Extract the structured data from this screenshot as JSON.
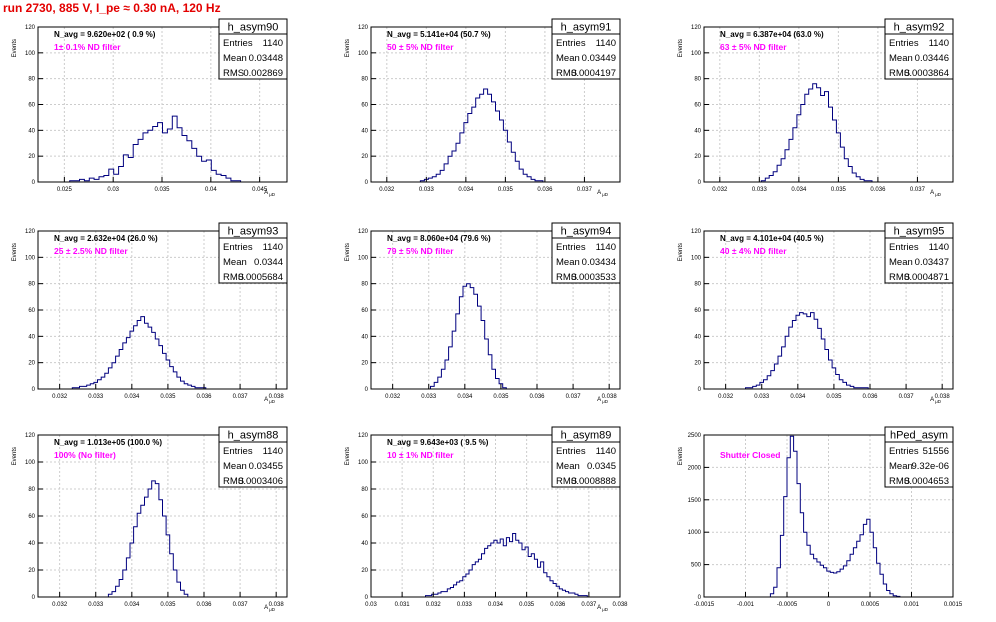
{
  "page": {
    "title": "run 2730,   885 V, I_pe ≈ 0.30 nA, 120 Hz"
  },
  "colors": {
    "title": "#e30000",
    "histogram": "#00007f",
    "annotation": "#ff00ff",
    "grid": "#cccccc",
    "frame": "#000000"
  },
  "chart_data": [
    {
      "type": "histogram",
      "name": "h_asym90",
      "stats": [
        [
          "Entries",
          "1140"
        ],
        [
          "Mean",
          "0.03448"
        ],
        [
          "RMS",
          "0.002869"
        ]
      ],
      "navg": "N_avg = 9.620e+02 ( 0.9 %)",
      "filter": "1± 0.1% ND filter",
      "ylabel": "Events",
      "xlabel": "A_μD",
      "xlim": [
        0.0223,
        0.0478
      ],
      "ylim": [
        0,
        120
      ],
      "xticks": [
        0.025,
        0.03,
        0.035,
        0.04,
        0.045
      ],
      "yticks": [
        0,
        20,
        40,
        60,
        80,
        100,
        120
      ],
      "x": [
        0.0253,
        0.0258,
        0.0263,
        0.0268,
        0.0273,
        0.0278,
        0.0283,
        0.0288,
        0.0293,
        0.0298,
        0.0303,
        0.0308,
        0.0313,
        0.0318,
        0.0323,
        0.0328,
        0.0333,
        0.0338,
        0.0343,
        0.0348,
        0.0353,
        0.0358,
        0.0363,
        0.0368,
        0.0373,
        0.0378,
        0.0383,
        0.0388,
        0.0393,
        0.0398,
        0.0403,
        0.0408,
        0.0413,
        0.0418,
        0.0423,
        0.0428,
        0.0433
      ],
      "values": [
        0,
        1,
        1,
        2,
        1,
        3,
        2,
        4,
        5,
        10,
        6,
        12,
        21,
        19,
        29,
        33,
        38,
        40,
        43,
        46,
        38,
        41,
        51,
        42,
        36,
        32,
        26,
        20,
        16,
        17,
        9,
        6,
        5,
        3,
        1,
        1,
        0
      ]
    },
    {
      "type": "histogram",
      "name": "h_asym91",
      "stats": [
        [
          "Entries",
          "1140"
        ],
        [
          "Mean",
          "0.03449"
        ],
        [
          "RMS",
          "0.0004197"
        ]
      ],
      "navg": "N_avg = 5.141e+04 (50.7 %)",
      "filter": "50 ± 5% ND filter",
      "ylabel": "Events",
      "xlabel": "A_μD",
      "xlim": [
        0.0316,
        0.0379
      ],
      "ylim": [
        0,
        120
      ],
      "xticks": [
        0.032,
        0.033,
        0.034,
        0.035,
        0.036,
        0.037
      ],
      "yticks": [
        0,
        20,
        40,
        60,
        80,
        100,
        120
      ],
      "x": [
        0.0328,
        0.0329,
        0.033,
        0.0331,
        0.0332,
        0.0333,
        0.0334,
        0.0335,
        0.0336,
        0.0337,
        0.0338,
        0.0339,
        0.034,
        0.0341,
        0.0342,
        0.0343,
        0.0344,
        0.0345,
        0.0346,
        0.0347,
        0.0348,
        0.0349,
        0.035,
        0.0351,
        0.0352,
        0.0353,
        0.0354,
        0.0355,
        0.0356,
        0.0357,
        0.0358,
        0.0359,
        0.036
      ],
      "values": [
        0,
        1,
        2,
        3,
        4,
        6,
        9,
        14,
        20,
        24,
        30,
        38,
        46,
        53,
        58,
        65,
        68,
        72,
        68,
        62,
        55,
        48,
        40,
        31,
        23,
        16,
        10,
        6,
        4,
        2,
        1,
        1,
        0
      ]
    },
    {
      "type": "histogram",
      "name": "h_asym92",
      "stats": [
        [
          "Entries",
          "1140"
        ],
        [
          "Mean",
          "0.03446"
        ],
        [
          "RMS",
          "0.0003864"
        ]
      ],
      "navg": "N_avg = 6.387e+04 (63.0 %)",
      "filter": "63 ± 5% ND filter",
      "ylabel": "Events",
      "xlabel": "A_μD",
      "xlim": [
        0.0316,
        0.0379
      ],
      "ylim": [
        0,
        120
      ],
      "xticks": [
        0.032,
        0.033,
        0.034,
        0.035,
        0.036,
        0.037
      ],
      "yticks": [
        0,
        20,
        40,
        60,
        80,
        100,
        120
      ],
      "x": [
        0.033,
        0.0331,
        0.0332,
        0.0333,
        0.0334,
        0.0335,
        0.0336,
        0.0337,
        0.0338,
        0.0339,
        0.034,
        0.0341,
        0.0342,
        0.0343,
        0.0344,
        0.0345,
        0.0346,
        0.0347,
        0.0348,
        0.0349,
        0.035,
        0.0351,
        0.0352,
        0.0353,
        0.0354,
        0.0355,
        0.0356,
        0.0357,
        0.0358,
        0.0359
      ],
      "values": [
        0,
        1,
        3,
        5,
        8,
        13,
        18,
        25,
        33,
        42,
        52,
        60,
        68,
        72,
        76,
        73,
        67,
        70,
        58,
        48,
        38,
        27,
        18,
        12,
        7,
        4,
        2,
        1,
        1,
        0
      ]
    },
    {
      "type": "histogram",
      "name": "h_asym93",
      "stats": [
        [
          "Entries",
          "1140"
        ],
        [
          "Mean",
          "0.0344"
        ],
        [
          "RMS",
          "0.0005684"
        ]
      ],
      "navg": "N_avg = 2.632e+04 (26.0 %)",
      "filter": "25 ± 2.5% ND filter",
      "ylabel": "Events",
      "xlabel": "A_μD",
      "xlim": [
        0.0314,
        0.0383
      ],
      "ylim": [
        0,
        120
      ],
      "xticks": [
        0.032,
        0.033,
        0.034,
        0.035,
        0.036,
        0.037,
        0.038
      ],
      "yticks": [
        0,
        20,
        40,
        60,
        80,
        100,
        120
      ],
      "x": [
        0.0323,
        0.0324,
        0.0325,
        0.0326,
        0.0327,
        0.0328,
        0.0329,
        0.033,
        0.0331,
        0.0332,
        0.0333,
        0.0334,
        0.0335,
        0.0336,
        0.0337,
        0.0338,
        0.0339,
        0.034,
        0.0341,
        0.0342,
        0.0343,
        0.0344,
        0.0345,
        0.0346,
        0.0347,
        0.0348,
        0.0349,
        0.035,
        0.0351,
        0.0352,
        0.0353,
        0.0354,
        0.0355,
        0.0356,
        0.0357,
        0.0358,
        0.0359,
        0.036,
        0.0361
      ],
      "values": [
        0,
        1,
        1,
        2,
        2,
        3,
        4,
        5,
        7,
        9,
        12,
        16,
        20,
        25,
        30,
        35,
        39,
        44,
        48,
        52,
        55,
        50,
        47,
        43,
        38,
        33,
        27,
        22,
        17,
        13,
        9,
        6,
        4,
        3,
        2,
        1,
        1,
        1,
        0
      ]
    },
    {
      "type": "histogram",
      "name": "h_asym94",
      "stats": [
        [
          "Entries",
          "1140"
        ],
        [
          "Mean",
          "0.03434"
        ],
        [
          "RMS",
          "0.0003533"
        ]
      ],
      "navg": "N_avg = 8.060e+04 (79.6 %)",
      "filter": "79 ± 5% ND filter",
      "ylabel": "Events",
      "xlabel": "A_μD",
      "xlim": [
        0.0314,
        0.0383
      ],
      "ylim": [
        0,
        120
      ],
      "xticks": [
        0.032,
        0.033,
        0.034,
        0.035,
        0.036,
        0.037,
        0.038
      ],
      "yticks": [
        0,
        20,
        40,
        60,
        80,
        100,
        120
      ],
      "x": [
        0.033,
        0.0331,
        0.0332,
        0.0333,
        0.0334,
        0.0335,
        0.0336,
        0.0337,
        0.0338,
        0.0339,
        0.034,
        0.0341,
        0.0342,
        0.0343,
        0.0344,
        0.0345,
        0.0346,
        0.0347,
        0.0348,
        0.0349,
        0.035,
        0.0351,
        0.0352
      ],
      "values": [
        0,
        2,
        5,
        9,
        15,
        22,
        32,
        44,
        57,
        70,
        78,
        80,
        77,
        72,
        63,
        52,
        38,
        26,
        15,
        8,
        4,
        1,
        0
      ]
    },
    {
      "type": "histogram",
      "name": "h_asym95",
      "stats": [
        [
          "Entries",
          "1140"
        ],
        [
          "Mean",
          "0.03437"
        ],
        [
          "RMS",
          "0.0004871"
        ]
      ],
      "navg": "N_avg = 4.101e+04 (40.5 %)",
      "filter": "40 ± 4% ND filter",
      "ylabel": "Events",
      "xlabel": "A_μD",
      "xlim": [
        0.0314,
        0.0383
      ],
      "ylim": [
        0,
        120
      ],
      "xticks": [
        0.032,
        0.033,
        0.034,
        0.035,
        0.036,
        0.037,
        0.038
      ],
      "yticks": [
        0,
        20,
        40,
        60,
        80,
        100,
        120
      ],
      "x": [
        0.0325,
        0.0326,
        0.0327,
        0.0328,
        0.0329,
        0.033,
        0.0331,
        0.0332,
        0.0333,
        0.0334,
        0.0335,
        0.0336,
        0.0337,
        0.0338,
        0.0339,
        0.034,
        0.0341,
        0.0342,
        0.0343,
        0.0344,
        0.0345,
        0.0346,
        0.0347,
        0.0348,
        0.0349,
        0.035,
        0.0351,
        0.0352,
        0.0353,
        0.0354,
        0.0355,
        0.0356,
        0.0357,
        0.0358,
        0.0359,
        0.036
      ],
      "values": [
        0,
        1,
        1,
        2,
        3,
        5,
        7,
        10,
        14,
        19,
        25,
        32,
        40,
        47,
        52,
        56,
        58,
        57,
        55,
        58,
        53,
        46,
        38,
        30,
        22,
        16,
        11,
        7,
        5,
        3,
        2,
        1,
        1,
        1,
        1,
        0
      ]
    },
    {
      "type": "histogram",
      "name": "h_asym88",
      "stats": [
        [
          "Entries",
          "1140"
        ],
        [
          "Mean",
          "0.03455"
        ],
        [
          "RMS",
          "0.0003406"
        ]
      ],
      "navg": "N_avg = 1.013e+05 (100.0 %)",
      "filter": "100% (No filter)",
      "ylabel": "Events",
      "xlabel": "A_μD",
      "xlim": [
        0.0314,
        0.0383
      ],
      "ylim": [
        0,
        120
      ],
      "xticks": [
        0.032,
        0.033,
        0.034,
        0.035,
        0.036,
        0.037,
        0.038
      ],
      "yticks": [
        0,
        20,
        40,
        60,
        80,
        100,
        120
      ],
      "x": [
        0.0333,
        0.0334,
        0.0335,
        0.0336,
        0.0337,
        0.0338,
        0.0339,
        0.034,
        0.0341,
        0.0342,
        0.0343,
        0.0344,
        0.0345,
        0.0346,
        0.0347,
        0.0348,
        0.0349,
        0.035,
        0.0351,
        0.0352,
        0.0353,
        0.0354,
        0.0355,
        0.0356
      ],
      "values": [
        0,
        2,
        4,
        8,
        13,
        20,
        29,
        40,
        52,
        62,
        68,
        74,
        80,
        86,
        84,
        72,
        60,
        46,
        32,
        20,
        11,
        5,
        2,
        0
      ]
    },
    {
      "type": "histogram",
      "name": "h_asym89",
      "stats": [
        [
          "Entries",
          "1140"
        ],
        [
          "Mean",
          "0.0345"
        ],
        [
          "RMS",
          "0.0008888"
        ]
      ],
      "navg": "N_avg = 9.643e+03 ( 9.5 %)",
      "filter": "10 ± 1% ND filter",
      "ylabel": "Events",
      "xlabel": "A_μD",
      "xlim": [
        0.03,
        0.038
      ],
      "ylim": [
        0,
        120
      ],
      "xticks": [
        0.03,
        0.031,
        0.032,
        0.033,
        0.034,
        0.035,
        0.036,
        0.037,
        0.038
      ],
      "yticks": [
        0,
        20,
        40,
        60,
        80,
        100,
        120
      ],
      "x": [
        0.0317,
        0.0318,
        0.0319,
        0.032,
        0.0321,
        0.0322,
        0.0323,
        0.0324,
        0.0325,
        0.0326,
        0.0327,
        0.0328,
        0.0329,
        0.033,
        0.0331,
        0.0332,
        0.0333,
        0.0334,
        0.0335,
        0.0336,
        0.0337,
        0.0338,
        0.0339,
        0.034,
        0.0341,
        0.0342,
        0.0343,
        0.0344,
        0.0345,
        0.0346,
        0.0347,
        0.0348,
        0.0349,
        0.035,
        0.0351,
        0.0352,
        0.0353,
        0.0354,
        0.0355,
        0.0356,
        0.0357,
        0.0358,
        0.0359,
        0.036,
        0.0361,
        0.0362,
        0.0363,
        0.0364,
        0.0365,
        0.0366,
        0.0367,
        0.0368,
        0.0369,
        0.037
      ],
      "values": [
        0,
        1,
        1,
        2,
        2,
        3,
        4,
        4,
        6,
        7,
        9,
        11,
        12,
        15,
        17,
        20,
        24,
        26,
        28,
        32,
        36,
        38,
        40,
        42,
        40,
        43,
        38,
        44,
        41,
        47,
        42,
        40,
        35,
        37,
        30,
        32,
        28,
        22,
        26,
        18,
        15,
        12,
        10,
        8,
        6,
        5,
        4,
        3,
        3,
        2,
        1,
        1,
        1,
        0
      ]
    },
    {
      "type": "histogram",
      "name": "hPed_asym",
      "stats": [
        [
          "Entries",
          "51556"
        ],
        [
          "Mean",
          "9.32e-06"
        ],
        [
          "RMS",
          "0.0004653"
        ]
      ],
      "navg": "",
      "filter": "Shutter Closed",
      "ylabel": "Events",
      "xlabel": "",
      "xlim": [
        -0.0015,
        0.0015
      ],
      "ylim": [
        0,
        2500
      ],
      "xticks": [
        -0.0015,
        -0.001,
        -0.0005,
        0,
        0.0005,
        0.001,
        0.0015
      ],
      "xticklabels": [
        "-0.0015",
        "-0.001",
        "-0.0005",
        "0",
        "0.0005",
        "0.001",
        "0.0015"
      ],
      "yticks": [
        0,
        500,
        1000,
        1500,
        2000,
        2500
      ],
      "x": [
        -0.00072,
        -0.00068,
        -0.00064,
        -0.0006,
        -0.00056,
        -0.00052,
        -0.00048,
        -0.00044,
        -0.0004,
        -0.00036,
        -0.00032,
        -0.00028,
        -0.00024,
        -0.0002,
        -0.00016,
        -0.00012,
        -8e-05,
        -4e-05,
        0,
        4e-05,
        8e-05,
        0.00012,
        0.00016,
        0.0002,
        0.00024,
        0.00028,
        0.00032,
        0.00036,
        0.0004,
        0.00044,
        0.00048,
        0.00052,
        0.00056,
        0.0006,
        0.00064,
        0.00068,
        0.00072,
        0.00076,
        0.0008,
        0.00084,
        0.00088,
        0.00092,
        0.00096,
        0.001,
        0.00104
      ],
      "values": [
        0,
        50,
        150,
        450,
        950,
        1550,
        2150,
        2480,
        2250,
        1750,
        1300,
        1000,
        800,
        660,
        590,
        540,
        490,
        450,
        400,
        380,
        370,
        390,
        430,
        480,
        560,
        660,
        760,
        860,
        960,
        1120,
        1200,
        1000,
        760,
        520,
        350,
        200,
        100,
        50,
        20,
        10,
        0,
        0,
        0,
        0,
        0
      ]
    }
  ]
}
